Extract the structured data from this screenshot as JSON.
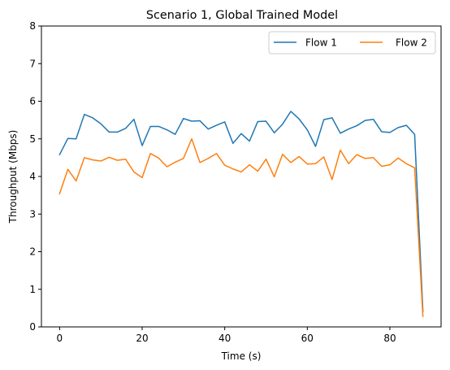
{
  "chart_data": {
    "type": "line",
    "title": "Scenario 1, Global Trained Model",
    "xlabel": "Time (s)",
    "ylabel": "Throughput (Mbps)",
    "xlim": [
      -4.4,
      92.4
    ],
    "ylim": [
      0,
      8
    ],
    "xticks": [
      0,
      20,
      40,
      60,
      80
    ],
    "yticks": [
      0,
      1,
      2,
      3,
      4,
      5,
      6,
      7,
      8
    ],
    "grid": false,
    "legend_position": "top-right",
    "legend_columns": 2,
    "colors": {
      "Flow 1": "#1f77b4",
      "Flow 2": "#ff7f0e"
    },
    "x": [
      0,
      2,
      4,
      6,
      8,
      10,
      12,
      14,
      16,
      18,
      20,
      22,
      24,
      26,
      28,
      30,
      32,
      34,
      36,
      38,
      40,
      42,
      44,
      46,
      48,
      50,
      52,
      54,
      56,
      58,
      60,
      62,
      64,
      66,
      68,
      70,
      72,
      74,
      76,
      78,
      80,
      82,
      84,
      86,
      88
    ],
    "series": [
      {
        "name": "Flow 1",
        "values": [
          4.58,
          5.01,
          5.0,
          5.65,
          5.56,
          5.4,
          5.18,
          5.18,
          5.28,
          5.52,
          4.82,
          5.33,
          5.33,
          5.24,
          5.12,
          5.54,
          5.47,
          5.48,
          5.26,
          5.36,
          5.45,
          4.88,
          5.14,
          4.94,
          5.46,
          5.47,
          5.16,
          5.39,
          5.73,
          5.53,
          5.24,
          4.8,
          5.51,
          5.56,
          5.15,
          5.26,
          5.35,
          5.49,
          5.52,
          5.19,
          5.17,
          5.3,
          5.36,
          5.12,
          0.41
        ]
      },
      {
        "name": "Flow 2",
        "values": [
          3.54,
          4.19,
          3.88,
          4.5,
          4.44,
          4.41,
          4.51,
          4.43,
          4.46,
          4.12,
          3.97,
          4.61,
          4.49,
          4.26,
          4.38,
          4.48,
          5.0,
          4.37,
          4.48,
          4.61,
          4.3,
          4.2,
          4.12,
          4.31,
          4.14,
          4.46,
          3.99,
          4.59,
          4.37,
          4.53,
          4.33,
          4.34,
          4.52,
          3.92,
          4.7,
          4.34,
          4.58,
          4.48,
          4.5,
          4.27,
          4.31,
          4.49,
          4.34,
          4.23,
          0.28
        ]
      }
    ]
  }
}
